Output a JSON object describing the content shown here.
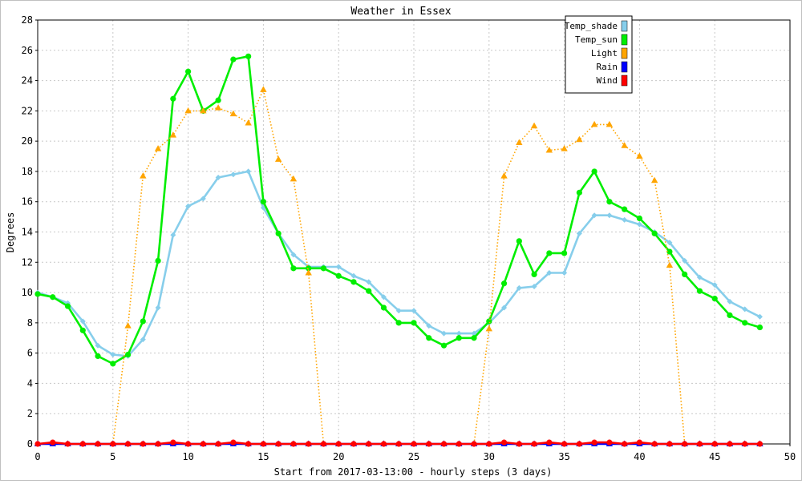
{
  "chart_data": {
    "type": "line",
    "title": "Weather in Essex",
    "xlabel": "Start from 2017-03-13:00 - hourly steps (3 days)",
    "ylabel": "Degrees",
    "xlim": [
      0,
      50
    ],
    "ylim": [
      0,
      28
    ],
    "xticks": [
      0,
      5,
      10,
      15,
      20,
      25,
      30,
      35,
      40,
      45,
      50
    ],
    "yticks": [
      0,
      2,
      4,
      6,
      8,
      10,
      12,
      14,
      16,
      18,
      20,
      22,
      24,
      26,
      28
    ],
    "grid": true,
    "legend_position": "top-right",
    "series": [
      {
        "name": "Temp_shade",
        "color": "#87ceeb",
        "marker": "diamond",
        "line": "solid",
        "x": [
          0,
          1,
          2,
          3,
          4,
          5,
          6,
          7,
          8,
          9,
          10,
          11,
          12,
          13,
          14,
          15,
          16,
          17,
          18,
          19,
          20,
          21,
          22,
          23,
          24,
          25,
          26,
          27,
          28,
          29,
          30,
          31,
          32,
          33,
          34,
          35,
          36,
          37,
          38,
          39,
          40,
          41,
          42,
          43,
          44,
          45,
          46,
          47,
          48
        ],
        "values": [
          10.0,
          9.7,
          9.3,
          8.1,
          6.5,
          5.9,
          5.8,
          6.9,
          9.0,
          13.8,
          15.7,
          16.2,
          17.6,
          17.8,
          18.0,
          15.6,
          13.9,
          12.5,
          11.7,
          11.7,
          11.7,
          11.1,
          10.7,
          9.7,
          8.8,
          8.8,
          7.8,
          7.3,
          7.3,
          7.3,
          8.0,
          9.0,
          10.3,
          10.4,
          11.3,
          11.3,
          13.9,
          15.1,
          15.1,
          14.8,
          14.5,
          14.0,
          13.3,
          12.1,
          11.0,
          10.5,
          9.4,
          8.9,
          8.4
        ]
      },
      {
        "name": "Temp_sun",
        "color": "#00ee00",
        "marker": "circle",
        "line": "solid",
        "x": [
          0,
          1,
          2,
          3,
          4,
          5,
          6,
          7,
          8,
          9,
          10,
          11,
          12,
          13,
          14,
          15,
          16,
          17,
          18,
          19,
          20,
          21,
          22,
          23,
          24,
          25,
          26,
          27,
          28,
          29,
          30,
          31,
          32,
          33,
          34,
          35,
          36,
          37,
          38,
          39,
          40,
          41,
          42,
          43,
          44,
          45,
          46,
          47,
          48
        ],
        "values": [
          9.9,
          9.7,
          9.1,
          7.5,
          5.8,
          5.3,
          5.9,
          8.1,
          12.1,
          22.8,
          24.6,
          22.0,
          22.7,
          25.4,
          25.6,
          16.0,
          13.9,
          11.6,
          11.6,
          11.6,
          11.1,
          10.7,
          10.1,
          9.0,
          8.0,
          8.0,
          7.0,
          6.5,
          7.0,
          7.0,
          8.1,
          10.6,
          13.4,
          11.2,
          12.6,
          12.6,
          16.6,
          18.0,
          16.0,
          15.5,
          14.9,
          13.9,
          12.7,
          11.2,
          10.1,
          9.6,
          8.5,
          8.0,
          7.7
        ]
      },
      {
        "name": "Light",
        "color": "#ffa500",
        "marker": "triangle",
        "line": "dotted",
        "x": [
          0,
          1,
          2,
          3,
          4,
          5,
          6,
          7,
          8,
          9,
          10,
          11,
          12,
          13,
          14,
          15,
          16,
          17,
          18,
          19,
          20,
          21,
          22,
          23,
          24,
          25,
          26,
          27,
          28,
          29,
          30,
          31,
          32,
          33,
          34,
          35,
          36,
          37,
          38,
          39,
          40,
          41,
          42,
          43,
          44,
          45,
          46,
          47,
          48
        ],
        "values": [
          0,
          0,
          0,
          0,
          0,
          0,
          7.8,
          17.7,
          19.5,
          20.4,
          22.0,
          22.0,
          22.2,
          21.8,
          21.2,
          23.4,
          18.8,
          17.5,
          11.3,
          0,
          0,
          0,
          0,
          0,
          0,
          0,
          0,
          0,
          0,
          0,
          7.6,
          17.7,
          19.9,
          21.0,
          19.4,
          19.5,
          20.1,
          21.1,
          21.1,
          19.7,
          19.0,
          17.4,
          11.8,
          0,
          0,
          0,
          0,
          0,
          0
        ]
      },
      {
        "name": "Rain",
        "color": "#0000ff",
        "marker": "triangle",
        "line": "solid",
        "x": [
          0,
          1,
          2,
          3,
          4,
          5,
          6,
          7,
          8,
          9,
          10,
          11,
          12,
          13,
          14,
          15,
          16,
          17,
          18,
          19,
          20,
          21,
          22,
          23,
          24,
          25,
          26,
          27,
          28,
          29,
          30,
          31,
          32,
          33,
          34,
          35,
          36,
          37,
          38,
          39,
          40,
          41,
          42,
          43,
          44,
          45,
          46,
          47,
          48
        ],
        "values": [
          0,
          0,
          0,
          0,
          0,
          0,
          0,
          0,
          0,
          0,
          0,
          0,
          0,
          0,
          0,
          0,
          0,
          0,
          0,
          0,
          0,
          0,
          0,
          0,
          0,
          0,
          0,
          0,
          0,
          0,
          0,
          0,
          0,
          0,
          0,
          0,
          0,
          0,
          0,
          0,
          0,
          0,
          0,
          0,
          0,
          0,
          0,
          0,
          0
        ]
      },
      {
        "name": "Wind",
        "color": "#ff0000",
        "marker": "circle",
        "line": "solid",
        "x": [
          0,
          1,
          2,
          3,
          4,
          5,
          6,
          7,
          8,
          9,
          10,
          11,
          12,
          13,
          14,
          15,
          16,
          17,
          18,
          19,
          20,
          21,
          22,
          23,
          24,
          25,
          26,
          27,
          28,
          29,
          30,
          31,
          32,
          33,
          34,
          35,
          36,
          37,
          38,
          39,
          40,
          41,
          42,
          43,
          44,
          45,
          46,
          47,
          48
        ],
        "values": [
          0,
          0.1,
          0,
          0,
          0,
          0,
          0,
          0,
          0,
          0.1,
          0,
          0,
          0,
          0.1,
          0,
          0,
          0,
          0,
          0,
          0,
          0,
          0,
          0,
          0,
          0,
          0,
          0,
          0,
          0,
          0,
          0,
          0.1,
          0,
          0,
          0.1,
          0,
          0,
          0.1,
          0.1,
          0,
          0.1,
          0,
          0,
          0,
          0,
          0,
          0,
          0,
          0
        ]
      }
    ]
  }
}
